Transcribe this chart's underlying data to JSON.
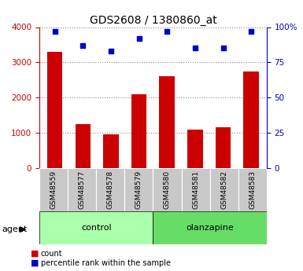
{
  "title": "GDS2608 / 1380860_at",
  "categories": [
    "GSM48559",
    "GSM48577",
    "GSM48578",
    "GSM48579",
    "GSM48580",
    "GSM48581",
    "GSM48582",
    "GSM48583"
  ],
  "counts": [
    3300,
    1250,
    950,
    2100,
    2600,
    1100,
    1150,
    2750
  ],
  "percentiles": [
    97,
    87,
    83,
    92,
    97,
    85,
    85,
    97
  ],
  "bar_color": "#cc0000",
  "dot_color": "#0000cc",
  "left_ylim": [
    0,
    4000
  ],
  "right_ylim": [
    0,
    100
  ],
  "left_yticks": [
    0,
    1000,
    2000,
    3000,
    4000
  ],
  "right_yticks": [
    0,
    25,
    50,
    75,
    100
  ],
  "right_yticklabels": [
    "0",
    "25",
    "50",
    "75",
    "100%"
  ],
  "groups": [
    {
      "label": "control",
      "span": [
        0,
        4
      ],
      "color": "#aaffaa"
    },
    {
      "label": "olanzapine",
      "span": [
        4,
        8
      ],
      "color": "#66dd66"
    }
  ],
  "group_row_label": "agent",
  "legend_items": [
    {
      "label": "count",
      "color": "#cc0000"
    },
    {
      "label": "percentile rank within the sample",
      "color": "#0000cc"
    }
  ],
  "grid_color": "#888888",
  "tick_label_color_left": "#cc0000",
  "tick_label_color_right": "#0000cc",
  "bar_width": 0.55,
  "xtick_bg_color": "#c8c8c8",
  "plot_bg_color": "#ffffff"
}
